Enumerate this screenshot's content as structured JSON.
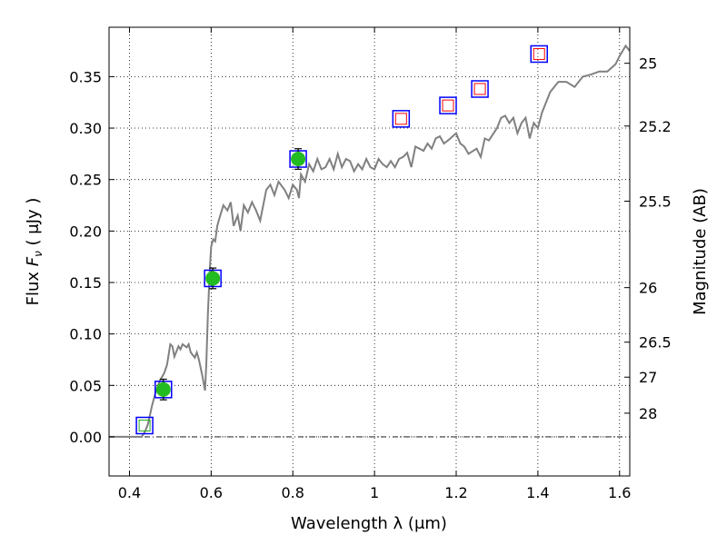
{
  "chart_data": {
    "type": "scatter",
    "xlabel": "Wavelength  λ (μm)",
    "ylabel": "Flux  F_ν  ( μJy )",
    "ylabel_parts": {
      "text": "Flux  ",
      "var": "F",
      "sub": "ν",
      "unit": "  ( μJy )"
    },
    "ylabel_right": "Magnitude (AB)",
    "xlim": [
      0.35,
      1.625
    ],
    "ylim": [
      -0.038,
      0.398
    ],
    "grid": true,
    "x_ticks": [
      0.4,
      0.6,
      0.8,
      1.0,
      1.2,
      1.4,
      1.6
    ],
    "x_tick_labels": [
      "0.4",
      "0.6",
      "0.8",
      "1",
      "1.2",
      "1.4",
      "1.6"
    ],
    "y_ticks": [
      0.0,
      0.05,
      0.1,
      0.15,
      0.2,
      0.25,
      0.3,
      0.35
    ],
    "y_tick_labels": [
      "0.00",
      "0.05",
      "0.10",
      "0.15",
      "0.20",
      "0.25",
      "0.30",
      "0.35"
    ],
    "right_ticks": [
      {
        "label": "25",
        "flux": 0.363
      },
      {
        "label": "25.2",
        "flux": 0.302
      },
      {
        "label": "25.5",
        "flux": 0.229
      },
      {
        "label": "26",
        "flux": 0.145
      },
      {
        "label": "26.5",
        "flux": 0.092
      },
      {
        "label": "27",
        "flux": 0.058
      },
      {
        "label": "28",
        "flux": 0.023
      }
    ],
    "series": [
      {
        "kind": "model_spectrum",
        "color": "#808080",
        "x": [
          0.35,
          0.43,
          0.438,
          0.445,
          0.455,
          0.465,
          0.475,
          0.485,
          0.492,
          0.5,
          0.505,
          0.51,
          0.52,
          0.525,
          0.53,
          0.54,
          0.545,
          0.55,
          0.56,
          0.565,
          0.57,
          0.578,
          0.585,
          0.588,
          0.592,
          0.597,
          0.6,
          0.605,
          0.61,
          0.615,
          0.62,
          0.63,
          0.64,
          0.648,
          0.655,
          0.665,
          0.672,
          0.68,
          0.69,
          0.7,
          0.71,
          0.72,
          0.735,
          0.745,
          0.755,
          0.765,
          0.78,
          0.79,
          0.8,
          0.81,
          0.815,
          0.82,
          0.83,
          0.84,
          0.85,
          0.86,
          0.87,
          0.88,
          0.89,
          0.9,
          0.91,
          0.92,
          0.93,
          0.94,
          0.95,
          0.96,
          0.97,
          0.98,
          0.99,
          1.0,
          1.01,
          1.02,
          1.03,
          1.04,
          1.05,
          1.06,
          1.07,
          1.08,
          1.09,
          1.1,
          1.11,
          1.12,
          1.13,
          1.14,
          1.15,
          1.16,
          1.17,
          1.18,
          1.2,
          1.21,
          1.22,
          1.23,
          1.25,
          1.26,
          1.27,
          1.28,
          1.3,
          1.31,
          1.32,
          1.33,
          1.34,
          1.35,
          1.36,
          1.37,
          1.38,
          1.39,
          1.4,
          1.41,
          1.42,
          1.43,
          1.45,
          1.47,
          1.49,
          1.51,
          1.53,
          1.55,
          1.57,
          1.59,
          1.6,
          1.615,
          1.625
        ],
        "y": [
          0.0,
          0.0,
          0.005,
          0.012,
          0.03,
          0.045,
          0.055,
          0.062,
          0.07,
          0.09,
          0.088,
          0.078,
          0.088,
          0.085,
          0.09,
          0.087,
          0.09,
          0.082,
          0.077,
          0.082,
          0.075,
          0.06,
          0.045,
          0.07,
          0.12,
          0.165,
          0.185,
          0.192,
          0.19,
          0.205,
          0.212,
          0.225,
          0.22,
          0.228,
          0.205,
          0.215,
          0.2,
          0.225,
          0.218,
          0.228,
          0.22,
          0.21,
          0.24,
          0.245,
          0.235,
          0.248,
          0.24,
          0.232,
          0.245,
          0.24,
          0.232,
          0.255,
          0.248,
          0.265,
          0.258,
          0.27,
          0.26,
          0.262,
          0.27,
          0.26,
          0.275,
          0.262,
          0.27,
          0.268,
          0.258,
          0.265,
          0.26,
          0.27,
          0.262,
          0.26,
          0.27,
          0.265,
          0.262,
          0.268,
          0.262,
          0.27,
          0.272,
          0.276,
          0.262,
          0.282,
          0.28,
          0.278,
          0.285,
          0.28,
          0.29,
          0.292,
          0.285,
          0.288,
          0.295,
          0.285,
          0.282,
          0.275,
          0.28,
          0.272,
          0.29,
          0.288,
          0.3,
          0.31,
          0.312,
          0.305,
          0.31,
          0.295,
          0.305,
          0.31,
          0.29,
          0.305,
          0.3,
          0.315,
          0.325,
          0.335,
          0.345,
          0.345,
          0.34,
          0.35,
          0.352,
          0.355,
          0.355,
          0.362,
          0.37,
          0.38,
          0.375
        ]
      },
      {
        "kind": "model_points",
        "marker": "square",
        "edge_color": "#0000ff",
        "points": [
          [
            0.437,
            0.011
          ],
          [
            0.483,
            0.046
          ],
          [
            0.604,
            0.154
          ],
          [
            0.813,
            0.27
          ],
          [
            1.065,
            0.309
          ],
          [
            1.18,
            0.322
          ],
          [
            1.258,
            0.338
          ],
          [
            1.403,
            0.372
          ]
        ]
      },
      {
        "kind": "observed_detections",
        "marker": "circle",
        "color": "#22bb22",
        "points": [
          {
            "x": 0.483,
            "y": 0.046,
            "yerr": 0.01
          },
          {
            "x": 0.604,
            "y": 0.154,
            "yerr": 0.01
          },
          {
            "x": 0.813,
            "y": 0.27,
            "yerr": 0.01
          }
        ]
      },
      {
        "kind": "upper_limits",
        "marker": "square",
        "edge_color": "#ff0000",
        "points": [
          [
            1.065,
            0.309
          ],
          [
            1.18,
            0.322
          ],
          [
            1.258,
            0.338
          ],
          [
            1.403,
            0.372
          ]
        ]
      },
      {
        "kind": "faint_point",
        "marker": "square",
        "edge_color": "#22aa22",
        "points": [
          [
            0.437,
            0.011
          ]
        ]
      }
    ]
  }
}
